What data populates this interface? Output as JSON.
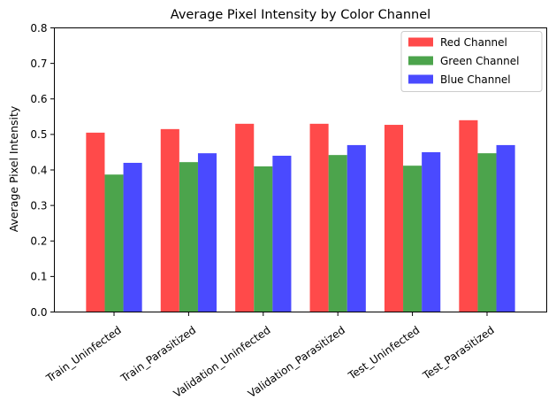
{
  "chart_data": {
    "type": "bar",
    "title": "Average Pixel Intensity by Color Channel",
    "xlabel": "",
    "ylabel": "Average Pixel Intensity",
    "ylim": [
      0,
      0.8
    ],
    "yticks": [
      0.0,
      0.1,
      0.2,
      0.3,
      0.4,
      0.5,
      0.6,
      0.7,
      0.8
    ],
    "ytick_labels": [
      "0.0",
      "0.1",
      "0.2",
      "0.3",
      "0.4",
      "0.5",
      "0.6",
      "0.7",
      "0.8"
    ],
    "grid": false,
    "legend_position": "top-right",
    "categories": [
      "Train_Uninfected",
      "Train_Parasitized",
      "Validation_Uninfected",
      "Validation_Parasitized",
      "Test_Uninfected",
      "Test_Parasitized"
    ],
    "series": [
      {
        "name": "Red Channel",
        "color": "#ff4a4a",
        "values": [
          0.505,
          0.515,
          0.53,
          0.53,
          0.527,
          0.54
        ]
      },
      {
        "name": "Green Channel",
        "color": "#4ca44c",
        "values": [
          0.387,
          0.422,
          0.41,
          0.442,
          0.412,
          0.447
        ]
      },
      {
        "name": "Blue Channel",
        "color": "#4a4aff",
        "values": [
          0.42,
          0.447,
          0.44,
          0.47,
          0.45,
          0.47
        ]
      }
    ]
  }
}
